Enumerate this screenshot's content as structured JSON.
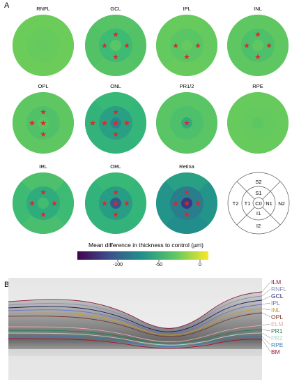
{
  "panel_a": {
    "letter": "A",
    "discs": [
      {
        "label": "RNFL",
        "ring": [
          0.06,
          0.05,
          0.05,
          0.05,
          0.05
        ],
        "mid": [
          0.07,
          0.07,
          0.07,
          0.07
        ],
        "center": 0.08,
        "stars": []
      },
      {
        "label": "GCL",
        "ring": [
          0.14,
          0.13,
          0.14,
          0.13,
          0.14
        ],
        "mid": [
          0.22,
          0.22,
          0.22,
          0.22
        ],
        "center": 0.12,
        "stars": [
          "mid-top",
          "mid-left",
          "mid-right",
          "mid-bottom"
        ]
      },
      {
        "label": "IPL",
        "ring": [
          0.08,
          0.07,
          0.08,
          0.07,
          0.08
        ],
        "mid": [
          0.12,
          0.12,
          0.12,
          0.12
        ],
        "center": 0.08,
        "stars": [
          "mid-left",
          "mid-right",
          "mid-bottom"
        ]
      },
      {
        "label": "INL",
        "ring": [
          0.1,
          0.1,
          0.1,
          0.1,
          0.1
        ],
        "mid": [
          0.16,
          0.16,
          0.16,
          0.16
        ],
        "center": 0.1,
        "stars": [
          "mid-top",
          "mid-left",
          "mid-right",
          "mid-bottom"
        ]
      },
      {
        "label": "OPL",
        "ring": [
          0.1,
          0.1,
          0.1,
          0.1,
          0.1
        ],
        "mid": [
          0.15,
          0.15,
          0.15,
          0.15
        ],
        "center": 0.12,
        "stars": [
          "mid-top",
          "mid-left",
          "center",
          "mid-bottom"
        ]
      },
      {
        "label": "ONL",
        "ring": [
          0.26,
          0.24,
          0.26,
          0.28,
          0.28
        ],
        "mid": [
          0.4,
          0.4,
          0.4,
          0.4
        ],
        "center": 0.54,
        "stars": [
          "mid-top",
          "ring-left",
          "mid-left",
          "center",
          "mid-right",
          "mid-bottom"
        ]
      },
      {
        "label": "PR1/2",
        "ring": [
          0.12,
          0.12,
          0.12,
          0.12,
          0.12
        ],
        "mid": [
          0.16,
          0.16,
          0.16,
          0.16
        ],
        "center": 0.32,
        "stars": [
          "center"
        ]
      },
      {
        "label": "RPE",
        "ring": [
          0.07,
          0.07,
          0.07,
          0.07,
          0.07
        ],
        "mid": [
          0.08,
          0.08,
          0.08,
          0.08
        ],
        "center": 0.11,
        "stars": []
      },
      {
        "label": "IRL",
        "ring": [
          0.24,
          0.16,
          0.22,
          0.18,
          0.22
        ],
        "mid": [
          0.32,
          0.32,
          0.32,
          0.32
        ],
        "center": 0.2,
        "stars": [
          "mid-top",
          "mid-left",
          "mid-right",
          "mid-bottom"
        ]
      },
      {
        "label": "ORL",
        "ring": [
          0.26,
          0.24,
          0.26,
          0.28,
          0.28
        ],
        "mid": [
          0.42,
          0.42,
          0.42,
          0.42
        ],
        "center": 0.78,
        "stars": [
          "mid-top",
          "mid-left",
          "center",
          "mid-right",
          "mid-bottom"
        ]
      },
      {
        "label": "Retina",
        "ring": [
          0.46,
          0.4,
          0.48,
          0.52,
          0.48
        ],
        "mid": [
          0.62,
          0.62,
          0.62,
          0.62
        ],
        "center": 0.86,
        "stars": [
          "mid-top",
          "mid-left",
          "center",
          "mid-right",
          "mid-bottom"
        ]
      }
    ],
    "grid_labels": {
      "s2": "S2",
      "s1": "S1",
      "t2": "T2",
      "t1": "T1",
      "c0": "C0",
      "n1": "N1",
      "n2": "N2",
      "i1": "I1",
      "i2": "I2"
    },
    "colorbar": {
      "title": "Mean difference in thickness to control (µm)",
      "ticks": [
        "-100",
        "-50",
        "0"
      ],
      "colors": [
        "#440154",
        "#3b528b",
        "#21918c",
        "#5ec962",
        "#fde725"
      ]
    },
    "star_color": "#e0262a"
  },
  "panel_b": {
    "letter": "B",
    "layer_labels": [
      {
        "text": "ILM",
        "color": "#8c1c3c"
      },
      {
        "text": "RNFL",
        "color": "#8a8fb0"
      },
      {
        "text": "GCL",
        "color": "#1a1a60"
      },
      {
        "text": "IPL",
        "color": "#6a70c8"
      },
      {
        "text": "INL",
        "color": "#c8a028"
      },
      {
        "text": "OPL",
        "color": "#7a3020"
      },
      {
        "text": "ELM",
        "color": "#e8a8b0"
      },
      {
        "text": "PR1",
        "color": "#208050"
      },
      {
        "text": "PR2",
        "color": "#a8d8c8"
      },
      {
        "text": "RPE",
        "color": "#3878b8"
      },
      {
        "text": "BM",
        "color": "#a01830"
      }
    ]
  }
}
